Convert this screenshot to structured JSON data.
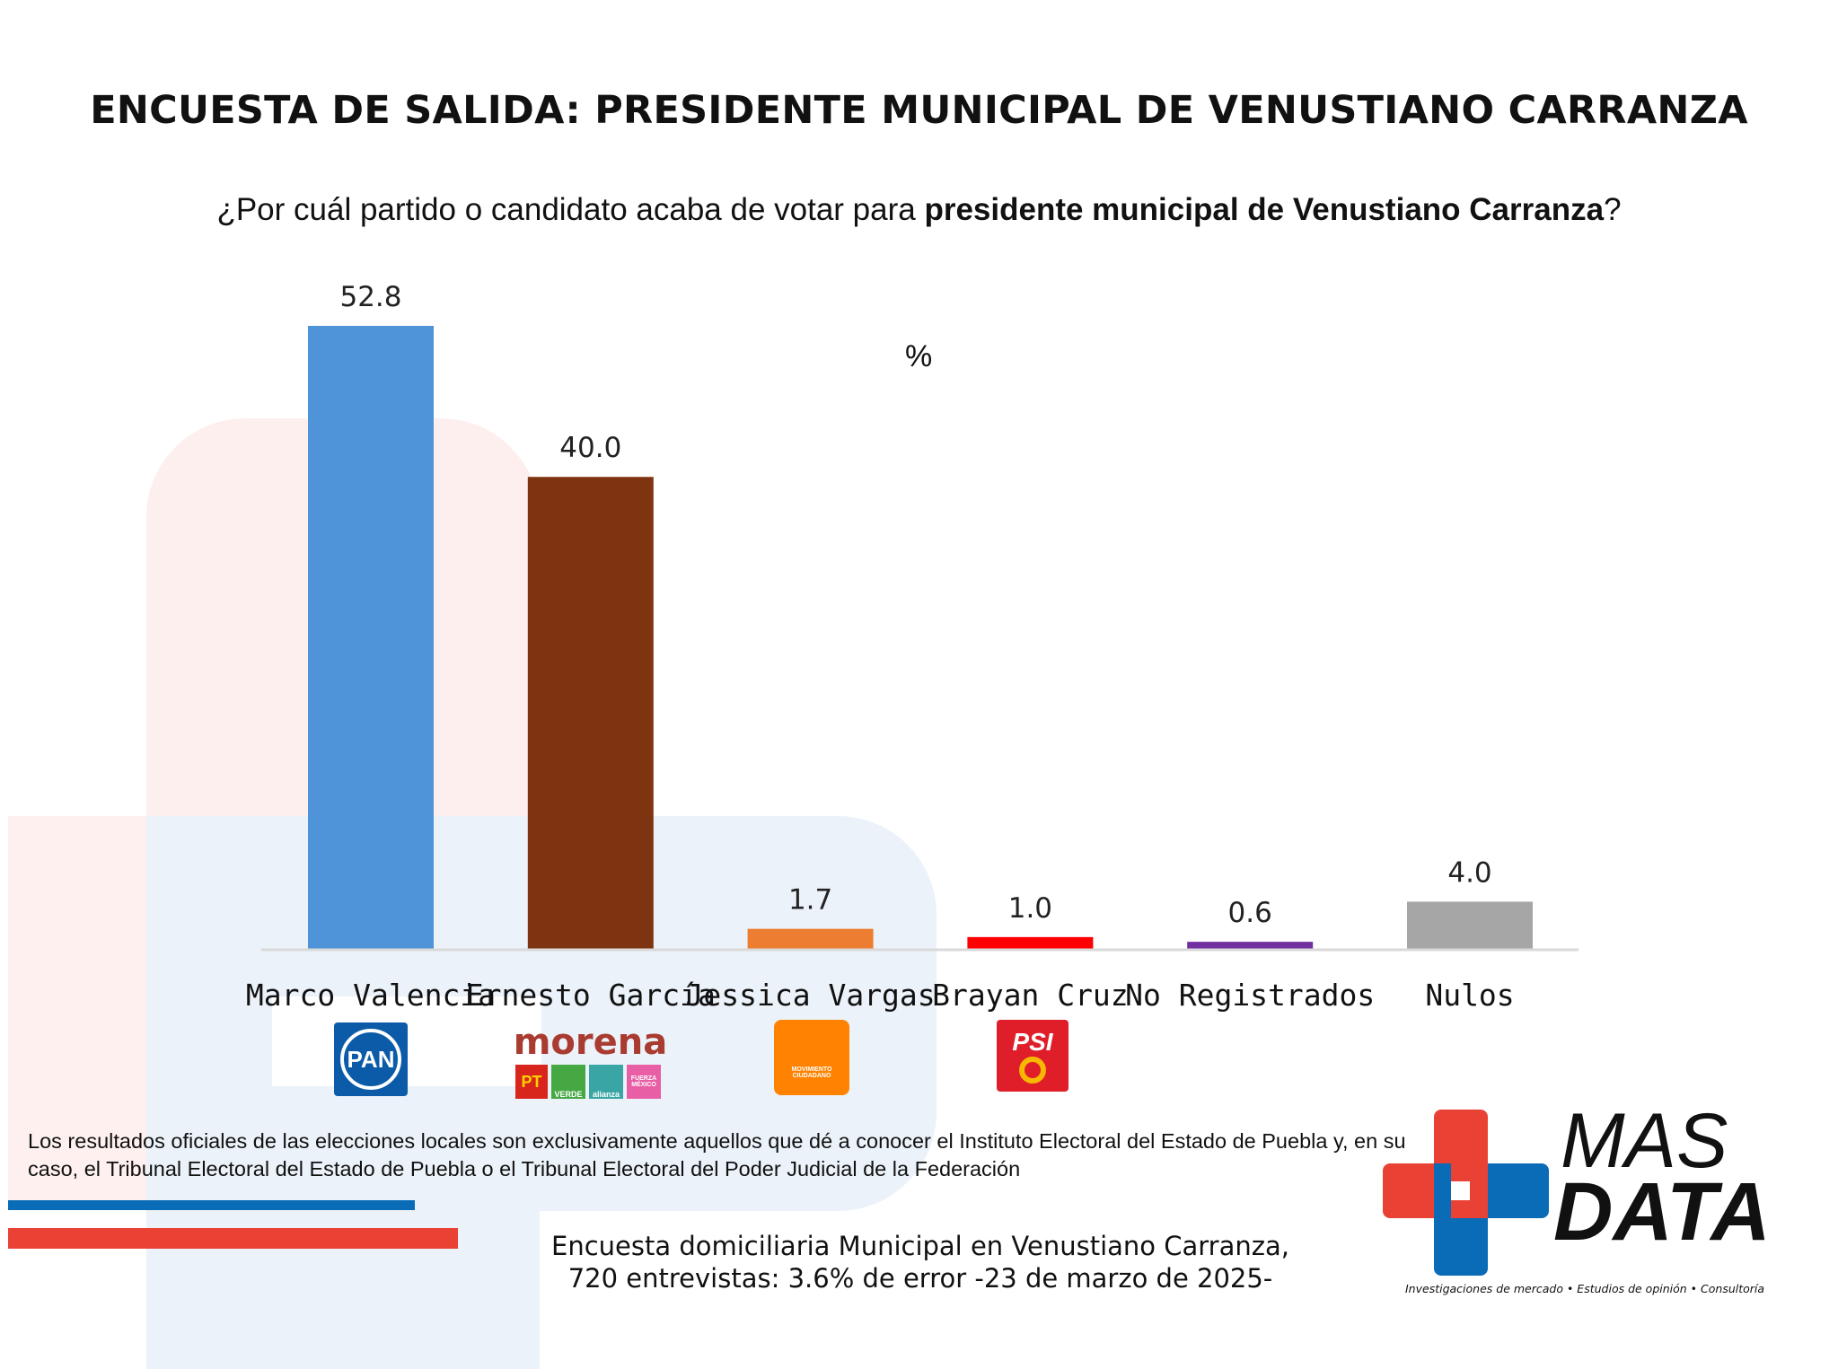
{
  "title": "ENCUESTA DE SALIDA: PRESIDENTE MUNICIPAL DE VENUSTIANO CARRANZA",
  "subtitle": {
    "prefix": "¿Por cuál partido o candidato acaba de votar para ",
    "bold": "presidente municipal de Venustiano Carranza",
    "suffix": "?"
  },
  "chart_data": {
    "type": "bar",
    "unit_label": "%",
    "categories": [
      "Marco Valencia",
      "Ernesto García",
      "Jessica Vargas",
      "Brayan Cruz",
      "No Registrados",
      "Nulos"
    ],
    "values": [
      52.8,
      40.0,
      1.7,
      1.0,
      0.6,
      4.0
    ],
    "value_labels": [
      "52.8",
      "40.0",
      "1.7",
      "1.0",
      "0.6",
      "4.0"
    ],
    "colors": [
      "#4F94D8",
      "#7F3411",
      "#ED7D31",
      "#FF0000",
      "#7030A0",
      "#A6A6A6"
    ],
    "ylim": [
      0,
      55
    ],
    "grid": false
  },
  "party_logos": {
    "pan": "PAN",
    "morena": "morena",
    "pt": "PT",
    "verde": "VERDE",
    "alianza": "alianza",
    "fuerza": "FUERZA MÉXICO",
    "mc": "MOVIMIENTO CIUDADANO",
    "psi": "PSI"
  },
  "disclaimer": "Los resultados oficiales de las elecciones locales son exclusivamente aquellos que dé a conocer el Instituto Electoral del Estado de Puebla y, en su caso, el Tribunal Electoral del Estado de Puebla o el Tribunal Electoral del Poder Judicial de la Federación",
  "footer": {
    "line1": "Encuesta domiciliaria Municipal en Venustiano Carranza,",
    "line2": "720 entrevistas: 3.6% de error -23 de marzo de 2025-"
  },
  "brand": {
    "name_top": "MAS",
    "name_bottom": "DATA",
    "tagline": "Investigaciones de mercado • Estudios de opinión • Consultoría",
    "colors": {
      "red": "#E94235",
      "blue": "#0A6CB7"
    }
  }
}
